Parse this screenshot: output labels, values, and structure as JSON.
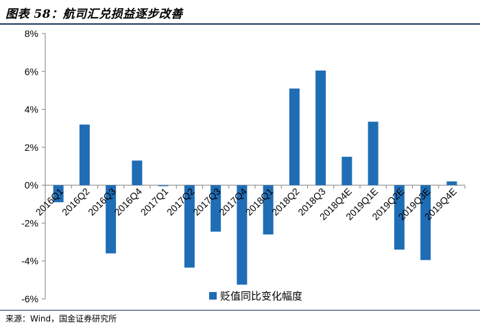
{
  "header": {
    "title": "图表 58：航司汇兑损益逐步改善"
  },
  "footer": {
    "source": "来源：Wind，国金证券研究所"
  },
  "chart_data": {
    "type": "bar",
    "categories": [
      "2016Q1",
      "2016Q2",
      "2016Q3",
      "2016Q4",
      "2017Q1",
      "2017Q2",
      "2017Q3",
      "2017Q4",
      "2018Q1",
      "2018Q2",
      "2018Q3",
      "2018Q4E",
      "2019Q1E",
      "2019Q2E",
      "2019Q3E",
      "2019Q4E"
    ],
    "series": [
      {
        "name": "贬值同比变化幅度",
        "values": [
          -0.9,
          3.2,
          -3.6,
          1.3,
          -0.05,
          -4.35,
          -2.45,
          -5.25,
          -2.6,
          5.1,
          6.05,
          1.5,
          3.35,
          -3.4,
          -3.95,
          0.2
        ]
      }
    ],
    "ylim": [
      -6,
      8
    ],
    "yticks": [
      -6,
      -4,
      -2,
      0,
      2,
      4,
      6,
      8
    ],
    "ytick_labels": [
      "-6%",
      "-4%",
      "-2%",
      "0%",
      "2%",
      "4%",
      "6%",
      "8%"
    ],
    "legend": {
      "position": "bottom-right",
      "label": "贬值同比变化幅度"
    },
    "colors": {
      "bar": "#1f6db5",
      "axis": "#808080"
    }
  }
}
